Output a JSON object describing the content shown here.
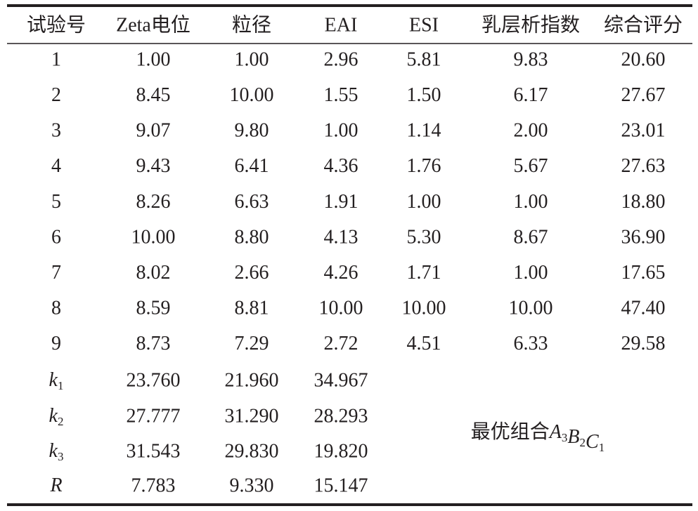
{
  "table": {
    "header": [
      "试验号",
      "Zeta电位",
      "粒径",
      "EAI",
      "ESI",
      "乳层析指数",
      "综合评分"
    ],
    "rows": [
      [
        "1",
        "1.00",
        "1.00",
        "2.96",
        "5.81",
        "9.83",
        "20.60"
      ],
      [
        "2",
        "8.45",
        "10.00",
        "1.55",
        "1.50",
        "6.17",
        "27.67"
      ],
      [
        "3",
        "9.07",
        "9.80",
        "1.00",
        "1.14",
        "2.00",
        "23.01"
      ],
      [
        "4",
        "9.43",
        "6.41",
        "4.36",
        "1.76",
        "5.67",
        "27.63"
      ],
      [
        "5",
        "8.26",
        "6.63",
        "1.91",
        "1.00",
        "1.00",
        "18.80"
      ],
      [
        "6",
        "10.00",
        "8.80",
        "4.13",
        "5.30",
        "8.67",
        "36.90"
      ],
      [
        "7",
        "8.02",
        "2.66",
        "4.26",
        "1.71",
        "1.00",
        "17.65"
      ],
      [
        "8",
        "8.59",
        "8.81",
        "10.00",
        "10.00",
        "10.00",
        "47.40"
      ],
      [
        "9",
        "8.73",
        "7.29",
        "2.72",
        "4.51",
        "6.33",
        "29.58"
      ]
    ],
    "stat_rows": [
      {
        "label": {
          "letter": "k",
          "sub": "1"
        },
        "cells": [
          "23.760",
          "21.960",
          "34.967"
        ]
      },
      {
        "label": {
          "letter": "k",
          "sub": "2"
        },
        "cells": [
          "27.777",
          "31.290",
          "28.293"
        ]
      },
      {
        "label": {
          "letter": "k",
          "sub": "3"
        },
        "cells": [
          "31.543",
          "29.830",
          "19.820"
        ]
      },
      {
        "label": {
          "letter": "R"
        },
        "cells": [
          "7.783",
          "9.330",
          "15.147"
        ]
      }
    ],
    "conclusion": {
      "text": "最优组合",
      "terms": [
        {
          "letter": "A",
          "sub": "3"
        },
        {
          "letter": "B",
          "sub": "2"
        },
        {
          "letter": "C",
          "sub": "1"
        }
      ]
    }
  }
}
